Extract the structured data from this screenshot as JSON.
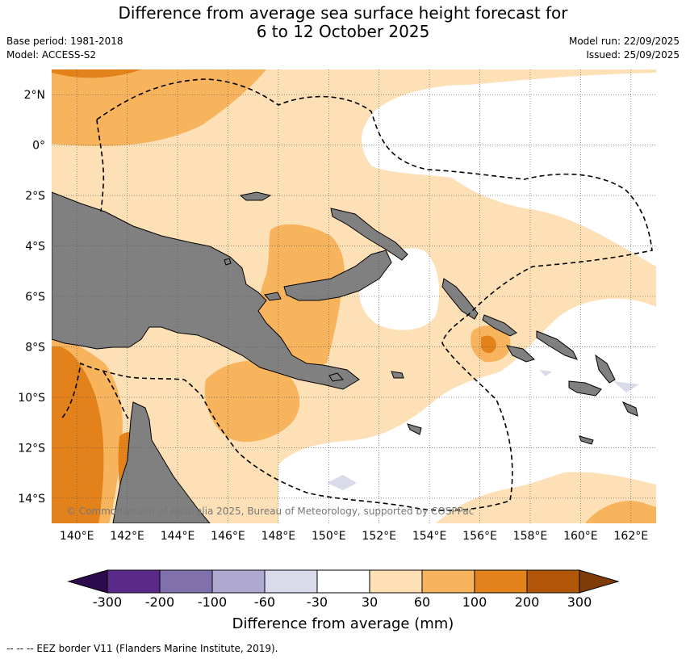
{
  "title": {
    "line1": "Difference from average sea surface height forecast for",
    "line2": "6 to 12 October 2025"
  },
  "meta": {
    "base_period": "Base period: 1981-2018",
    "model": "Model: ACCESS-S2",
    "model_run": "Model run: 22/09/2025",
    "issued": "Issued: 25/09/2025"
  },
  "map": {
    "lon_range": [
      139,
      163
    ],
    "lat_range": [
      -15,
      3
    ],
    "lon_ticks": [
      "140°E",
      "142°E",
      "144°E",
      "146°E",
      "148°E",
      "150°E",
      "152°E",
      "154°E",
      "156°E",
      "158°E",
      "160°E",
      "162°E"
    ],
    "lat_ticks": [
      "2°N",
      "0°",
      "2°S",
      "4°S",
      "6°S",
      "8°S",
      "10°S",
      "12°S",
      "14°S"
    ],
    "credit": "© Commonwealth of Australia 2025, Bureau of Meteorology, supported by COSPPac",
    "land_color": "#808080",
    "eez_label": "--  --  -- EEZ border V11 (Flanders Marine Institute, 2019)."
  },
  "colorbar": {
    "title": "Difference from average (mm)",
    "labels": [
      "-300",
      "-200",
      "-100",
      "-60",
      "-30",
      "30",
      "60",
      "100",
      "200",
      "300"
    ],
    "colors": [
      "#5a2a8a",
      "#8070ac",
      "#b0a9d2",
      "#d9dbeb",
      "#ffffff",
      "#fde0b6",
      "#f8b45d",
      "#e3811a",
      "#b15707"
    ],
    "under_color": "#2d0a4e",
    "over_color": "#7f3b08"
  }
}
